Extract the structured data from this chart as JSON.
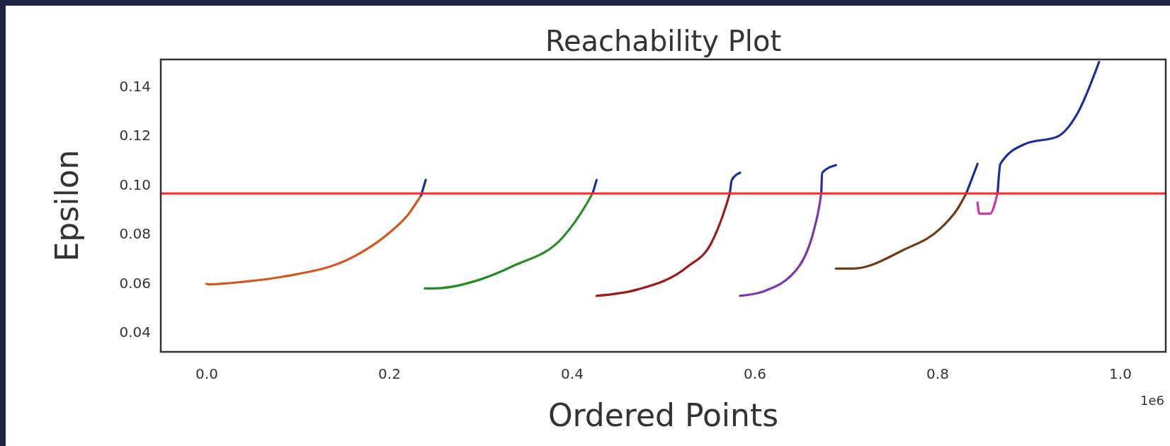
{
  "chart_data": {
    "type": "line",
    "title": "Reachability Plot",
    "xlabel": "Ordered Points",
    "ylabel": "Epsilon",
    "xlim": [
      -0.05,
      1.05
    ],
    "xticks": [
      {
        "value": 0,
        "label": "0.0"
      },
      0.2,
      0.4,
      0.6,
      0.8,
      {
        "value": 1,
        "label": "1.0"
      }
    ],
    "ylim": [
      0.032,
      0.151
    ],
    "yticks": [
      0.04,
      0.06,
      0.08,
      {
        "value": 0.1,
        "label": "0.10"
      },
      0.12,
      0.14
    ],
    "annotations": [
      "1e6"
    ],
    "ref_lines": [
      {
        "axis": "y",
        "value": 0.0965,
        "color": "#ff2a2a"
      }
    ],
    "grid": false,
    "marker": "none",
    "line_style": "solid",
    "series": [
      {
        "color": "#d2581e",
        "x": [
          0,
          0.002,
          0.04,
          0.084,
          0.161,
          0.2,
          0.221,
          0.235
        ],
        "values": [
          0.0597,
          0.0595,
          0.0605,
          0.0626,
          0.0707,
          0.0804,
          0.088,
          0.0957
        ]
      },
      {
        "color": "#2a8a2a",
        "x": [
          0.239,
          0.254,
          0.3,
          0.336,
          0.39,
          0.417,
          0.423
        ],
        "values": [
          0.0578,
          0.0579,
          0.0615,
          0.067,
          0.0786,
          0.0928,
          0.0968
        ]
      },
      {
        "color": "#9b1c1c",
        "x": [
          0.427,
          0.472,
          0.526,
          0.553,
          0.569,
          0.573
        ],
        "values": [
          0.0548,
          0.0574,
          0.0665,
          0.0766,
          0.0918,
          0.0968
        ]
      },
      {
        "color": "#7a3aa8",
        "x": [
          0.584,
          0.608,
          0.648,
          0.665,
          0.671,
          0.673
        ],
        "values": [
          0.0548,
          0.0564,
          0.0665,
          0.0817,
          0.0918,
          0.0968
        ]
      },
      {
        "color": "#6b3d1a",
        "x": [
          0.689,
          0.708,
          0.763,
          0.803,
          0.822,
          0.832
        ],
        "values": [
          0.0659,
          0.0659,
          0.0735,
          0.0821,
          0.0902,
          0.0968
        ]
      },
      {
        "color": "#c2399f",
        "x": [
          0.844,
          0.846,
          0.858,
          0.862,
          0.866
        ],
        "values": [
          0.0928,
          0.0882,
          0.0882,
          0.0912,
          0.0968
        ]
      },
      {
        "color": "#1c2c9c",
        "x": [
          0.235,
          0.24
        ],
        "values": [
          0.0957,
          0.102
        ]
      },
      {
        "color": "#1c2c9c",
        "x": [
          0.423,
          0.427
        ],
        "values": [
          0.0968,
          0.1019
        ]
      },
      {
        "color": "#1c2c9c",
        "x": [
          0.573,
          0.575,
          0.584
        ],
        "values": [
          0.0968,
          0.1019,
          0.1049
        ]
      },
      {
        "color": "#1c2c9c",
        "x": [
          0.673,
          0.674,
          0.689
        ],
        "values": [
          0.0968,
          0.1049,
          0.108
        ]
      },
      {
        "color": "#1c2c9c",
        "x": [
          0.832,
          0.844
        ],
        "values": [
          0.0968,
          0.1085
        ]
      },
      {
        "color": "#1c2c9c",
        "x": [
          0.866,
          0.869,
          0.896,
          0.932,
          0.953,
          0.977
        ],
        "values": [
          0.0968,
          0.1085,
          0.1166,
          0.1197,
          0.1288,
          0.15
        ]
      }
    ]
  }
}
